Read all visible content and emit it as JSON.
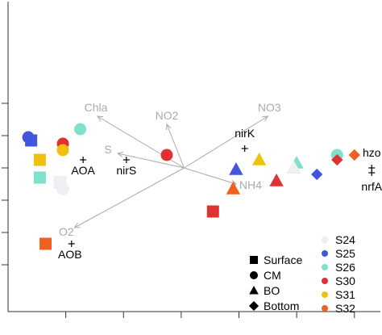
{
  "chart_data": {
    "type": "scatter",
    "title": "",
    "xlabel": "",
    "ylabel": "",
    "xlim": [
      -1.0,
      5.45
    ],
    "ylim": [
      -4.45,
      5.15
    ],
    "x_ticks": [
      0,
      1,
      2,
      3,
      4,
      5
    ],
    "y_ticks": [
      -3,
      -2,
      -1,
      0,
      1,
      2
    ],
    "grid": false,
    "legend_position": "bottom-right",
    "colors": {
      "S24": "#eef0f3",
      "S25": "#4455dd",
      "S26": "#7fe0cc",
      "S30": "#e03030",
      "S31": "#f0c010",
      "S32": "#f06020",
      "arrow": "#aaaaaa",
      "arrow_label": "#aaaaaa",
      "species_label": "#000000",
      "axis": "#333333"
    },
    "legend": {
      "shapes": [
        {
          "label": "Surface",
          "shape": "square"
        },
        {
          "label": "CM",
          "shape": "circle"
        },
        {
          "label": "BO",
          "shape": "triangle"
        },
        {
          "label": "Bottom",
          "shape": "diamond"
        }
      ],
      "stations": [
        "S24",
        "S25",
        "S26",
        "S30",
        "S31",
        "S32"
      ]
    },
    "env_arrows": [
      {
        "label": "Chla",
        "x": 0.55,
        "y": 1.6
      },
      {
        "label": "NO2",
        "x": 1.75,
        "y": 1.35
      },
      {
        "label": "NO3",
        "x": 3.5,
        "y": 1.6
      },
      {
        "label": "S",
        "x": 0.9,
        "y": 0.45
      },
      {
        "label": "NH4",
        "x": 2.95,
        "y": -0.5
      },
      {
        "label": "O2",
        "x": 0.15,
        "y": -1.85
      }
    ],
    "env_origin": {
      "x": 2.05,
      "y": 0.0
    },
    "species": [
      {
        "label": "AOA",
        "x": 0.3,
        "y": 0.25
      },
      {
        "label": "nirS",
        "x": 1.05,
        "y": 0.25
      },
      {
        "label": "nirK",
        "x": 3.1,
        "y": 0.6
      },
      {
        "label": "hzo",
        "x": 5.3,
        "y": 0.0
      },
      {
        "label": "nrfA",
        "x": 5.3,
        "y": -0.15
      },
      {
        "label": "AOB",
        "x": 0.1,
        "y": -2.35
      }
    ],
    "points": [
      {
        "station": "S25",
        "shape": "circle",
        "x": -0.65,
        "y": 0.95
      },
      {
        "station": "S25",
        "shape": "square",
        "x": -0.6,
        "y": 0.85
      },
      {
        "station": "S26",
        "shape": "circle",
        "x": 0.25,
        "y": 1.2
      },
      {
        "station": "S30",
        "shape": "circle",
        "x": -0.05,
        "y": 0.75
      },
      {
        "station": "S31",
        "shape": "circle",
        "x": -0.05,
        "y": 0.55
      },
      {
        "station": "S31",
        "shape": "square",
        "x": -0.45,
        "y": 0.25
      },
      {
        "station": "S26",
        "shape": "square",
        "x": -0.45,
        "y": -0.3
      },
      {
        "station": "S24",
        "shape": "square",
        "x": -0.1,
        "y": -0.45
      },
      {
        "station": "S24",
        "shape": "circle",
        "x": -0.05,
        "y": -0.65
      },
      {
        "station": "S30",
        "shape": "circle",
        "x": 1.75,
        "y": 0.4
      },
      {
        "station": "S25",
        "shape": "triangle",
        "x": 2.95,
        "y": -0.05
      },
      {
        "station": "S31",
        "shape": "triangle",
        "x": 3.35,
        "y": 0.25
      },
      {
        "station": "S26",
        "shape": "triangle",
        "x": 4.0,
        "y": 0.15
      },
      {
        "station": "S24",
        "shape": "triangle",
        "x": 3.95,
        "y": 0.0
      },
      {
        "station": "S25",
        "shape": "diamond",
        "x": 4.35,
        "y": -0.2
      },
      {
        "station": "S26",
        "shape": "circle",
        "x": 4.7,
        "y": 0.4
      },
      {
        "station": "S32",
        "shape": "diamond",
        "x": 5.0,
        "y": 0.4
      },
      {
        "station": "S30",
        "shape": "diamond",
        "x": 4.7,
        "y": 0.25
      },
      {
        "station": "S30",
        "shape": "triangle",
        "x": 3.65,
        "y": -0.4
      },
      {
        "station": "S32",
        "shape": "triangle",
        "x": 2.9,
        "y": -0.65
      },
      {
        "station": "S30",
        "shape": "square",
        "x": 2.55,
        "y": -1.35
      },
      {
        "station": "S32",
        "shape": "square",
        "x": -0.35,
        "y": -2.35
      }
    ]
  }
}
